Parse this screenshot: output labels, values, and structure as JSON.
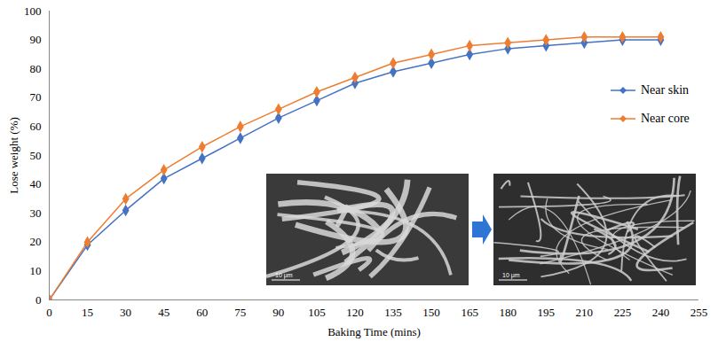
{
  "chart_data": {
    "type": "line",
    "x_label": "Baking Time (mins)",
    "y_label": "Lose weight (%)",
    "x": [
      0,
      15,
      30,
      45,
      60,
      75,
      90,
      105,
      120,
      135,
      150,
      165,
      180,
      195,
      210,
      225,
      240
    ],
    "series": [
      {
        "name": "Near skin",
        "color": "#4472c4",
        "marker": "diamond",
        "values": [
          0,
          19,
          31,
          42,
          49,
          56,
          63,
          69,
          75,
          79,
          82,
          85,
          87,
          88,
          89,
          90,
          90
        ]
      },
      {
        "name": "Near core",
        "color": "#ed7d31",
        "marker": "diamond",
        "values": [
          0,
          20,
          35,
          45,
          53,
          60,
          66,
          72,
          77,
          82,
          85,
          88,
          89,
          90,
          91,
          91,
          91
        ]
      }
    ],
    "xlim": [
      0,
      255
    ],
    "xticks": [
      0,
      15,
      30,
      45,
      60,
      75,
      90,
      105,
      120,
      135,
      150,
      165,
      180,
      195,
      210,
      225,
      240,
      255
    ],
    "ylim": [
      0,
      100
    ],
    "yticks": [
      0,
      10,
      20,
      30,
      40,
      50,
      60,
      70,
      80,
      90,
      100
    ],
    "grid": false,
    "legend": "right",
    "annotations": [
      "10 μm",
      "10 μm"
    ]
  }
}
